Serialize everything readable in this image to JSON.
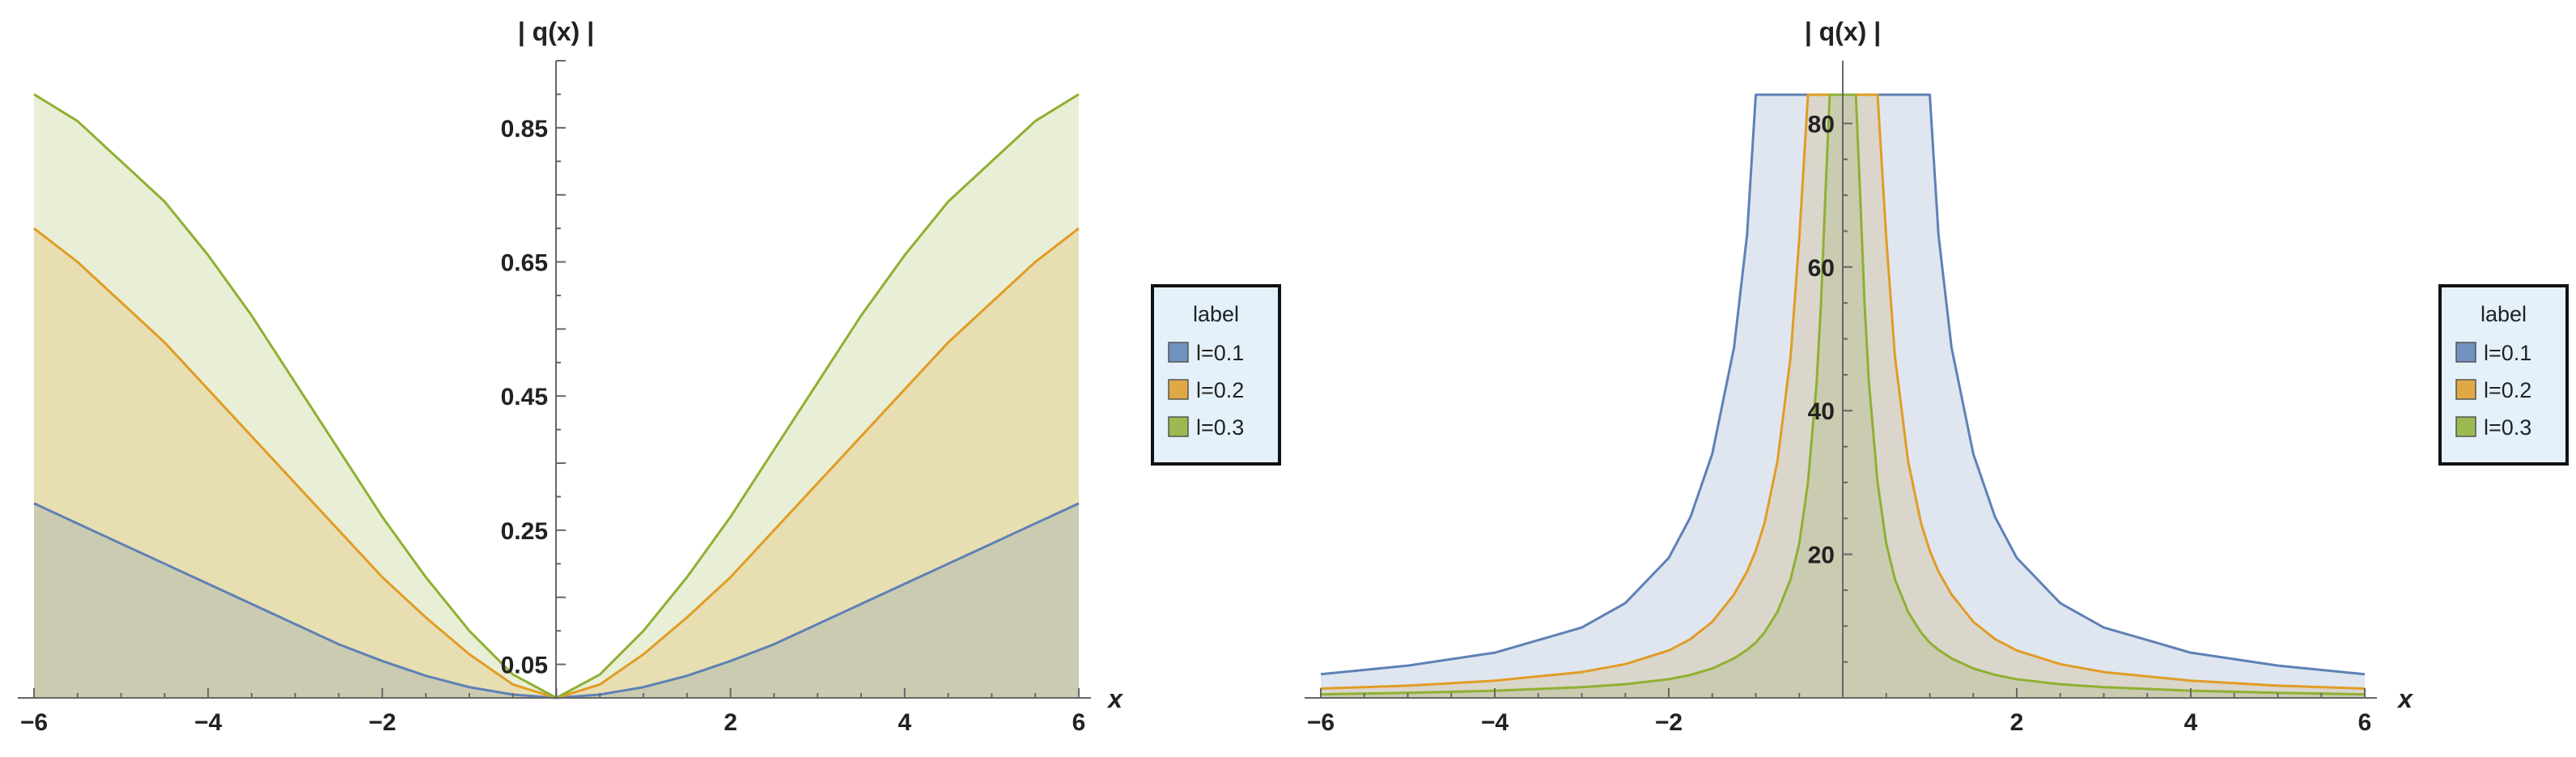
{
  "chart_data": [
    {
      "type": "area",
      "ylabel": "| q(x) |",
      "xlabel": "x",
      "xlim": [
        -6,
        6
      ],
      "ylim": [
        0,
        0.95
      ],
      "x_ticks": [
        -6,
        -4,
        -2,
        2,
        4,
        6
      ],
      "x_tick_labels": [
        "−6",
        "−4",
        "−2",
        "2",
        "4",
        "6"
      ],
      "y_ticks": [
        0.05,
        0.25,
        0.45,
        0.65,
        0.85
      ],
      "y_tick_labels": [
        "0.05",
        "0.25",
        "0.45",
        "0.65",
        "0.85"
      ],
      "x": [
        -6,
        -5.5,
        -5,
        -4.5,
        -4,
        -3.5,
        -3,
        -2.5,
        -2,
        -1.5,
        -1,
        -0.5,
        0,
        0.5,
        1,
        1.5,
        2,
        2.5,
        3,
        3.5,
        4,
        4.5,
        5,
        5.5,
        6
      ],
      "series": [
        {
          "name": "l=0.1",
          "color": "#5e81b5",
          "values": [
            0.29,
            0.26,
            0.23,
            0.2,
            0.17,
            0.14,
            0.11,
            0.08,
            0.055,
            0.033,
            0.016,
            0.005,
            0,
            0.005,
            0.016,
            0.033,
            0.055,
            0.08,
            0.11,
            0.14,
            0.17,
            0.2,
            0.23,
            0.26,
            0.29
          ]
        },
        {
          "name": "l=0.2",
          "color": "#e19c24",
          "values": [
            0.7,
            0.65,
            0.59,
            0.53,
            0.46,
            0.39,
            0.32,
            0.25,
            0.18,
            0.12,
            0.065,
            0.02,
            0,
            0.02,
            0.065,
            0.12,
            0.18,
            0.25,
            0.32,
            0.39,
            0.46,
            0.53,
            0.59,
            0.65,
            0.7
          ]
        },
        {
          "name": "l=0.3",
          "color": "#8fb032",
          "values": [
            0.9,
            0.86,
            0.8,
            0.74,
            0.66,
            0.57,
            0.47,
            0.37,
            0.27,
            0.18,
            0.1,
            0.035,
            0,
            0.035,
            0.1,
            0.18,
            0.27,
            0.37,
            0.47,
            0.57,
            0.66,
            0.74,
            0.8,
            0.86,
            0.9
          ]
        }
      ],
      "legend": {
        "title": "label",
        "entries": [
          "l=0.1",
          "l=0.2",
          "l=0.3"
        ],
        "position": "right"
      },
      "filled": true
    },
    {
      "type": "area",
      "ylabel": "| q(x) |",
      "xlabel": "x",
      "xlim": [
        -6,
        6
      ],
      "ylim": [
        0,
        84
      ],
      "x_ticks": [
        -6,
        -4,
        -2,
        2,
        4,
        6
      ],
      "x_tick_labels": [
        "−6",
        "−4",
        "−2",
        "2",
        "4",
        "6"
      ],
      "y_ticks": [
        20,
        40,
        60,
        80
      ],
      "y_tick_labels": [
        "20",
        "40",
        "60",
        "80"
      ],
      "x": [
        -6,
        -5,
        -4,
        -3,
        -2.5,
        -2,
        -1.75,
        -1.5,
        -1.25,
        -1.1,
        -1,
        -0.9,
        -0.75,
        -0.6,
        -0.5,
        -0.4,
        -0.3,
        -0.25,
        -0.2,
        -0.15,
        -0.1,
        0.1,
        0.15,
        0.2,
        0.25,
        0.3,
        0.4,
        0.5,
        0.6,
        0.75,
        0.9,
        1,
        1.1,
        1.25,
        1.5,
        1.75,
        2,
        2.5,
        3,
        4,
        5,
        6
      ],
      "series": [
        {
          "name": "l=0.1",
          "color": "#5e81b5",
          "values": [
            3.3,
            4.5,
            6.3,
            9.8,
            13.2,
            19.5,
            25.2,
            34,
            48.8,
            64.5,
            84,
            84,
            84,
            84,
            84,
            84,
            84,
            84,
            84,
            84,
            84,
            84,
            84,
            84,
            84,
            84,
            84,
            84,
            84,
            84,
            84,
            84,
            64.5,
            48.8,
            34,
            25.2,
            19.5,
            13.2,
            9.8,
            6.3,
            4.5,
            3.3
          ]
        },
        {
          "name": "l=0.2",
          "color": "#e19c24",
          "values": [
            1.3,
            1.7,
            2.4,
            3.6,
            4.7,
            6.6,
            8.2,
            10.6,
            14.4,
            17.6,
            20.5,
            24.3,
            33,
            47.5,
            64,
            84,
            84,
            84,
            84,
            84,
            84,
            84,
            84,
            84,
            84,
            84,
            84,
            64,
            47.5,
            33,
            24.3,
            20.5,
            17.6,
            14.4,
            10.6,
            8.2,
            6.6,
            4.7,
            3.6,
            2.4,
            1.7,
            1.3
          ]
        },
        {
          "name": "l=0.3",
          "color": "#8fb032",
          "values": [
            0.5,
            0.7,
            1,
            1.5,
            1.9,
            2.6,
            3.2,
            4.1,
            5.5,
            6.7,
            7.7,
            9.1,
            12,
            16.5,
            21.5,
            30,
            44,
            55,
            70,
            84,
            84,
            84,
            84,
            70,
            55,
            44,
            30,
            21.5,
            16.5,
            12,
            9.1,
            7.7,
            6.7,
            5.5,
            4.1,
            3.2,
            2.6,
            1.9,
            1.5,
            1,
            0.7,
            0.5
          ]
        }
      ],
      "legend": {
        "title": "label",
        "entries": [
          "l=0.1",
          "l=0.2",
          "l=0.3"
        ],
        "position": "right"
      },
      "filled": true
    }
  ]
}
